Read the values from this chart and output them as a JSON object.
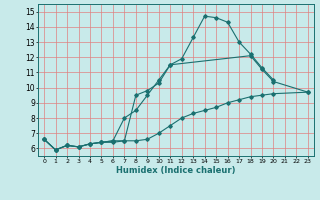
{
  "title": "",
  "xlabel": "Humidex (Indice chaleur)",
  "ylabel": "",
  "background_color": "#c8eaea",
  "grid_color": "#e08080",
  "line_color": "#1a7070",
  "xlim": [
    -0.5,
    23.5
  ],
  "ylim": [
    5.5,
    15.5
  ],
  "xticks": [
    0,
    1,
    2,
    3,
    4,
    5,
    6,
    7,
    8,
    9,
    10,
    11,
    12,
    13,
    14,
    15,
    16,
    17,
    18,
    19,
    20,
    21,
    22,
    23
  ],
  "yticks": [
    6,
    7,
    8,
    9,
    10,
    11,
    12,
    13,
    14,
    15
  ],
  "series": [
    {
      "x": [
        0,
        1,
        2,
        3,
        4,
        5,
        6,
        7,
        8,
        9,
        10,
        11,
        12,
        13,
        14,
        15,
        16,
        17,
        18,
        19,
        20
      ],
      "y": [
        6.6,
        5.9,
        6.2,
        6.1,
        6.3,
        6.4,
        6.5,
        6.5,
        9.5,
        9.8,
        10.3,
        11.5,
        11.9,
        13.3,
        14.7,
        14.6,
        14.3,
        13.0,
        12.2,
        11.3,
        10.5
      ]
    },
    {
      "x": [
        0,
        1,
        2,
        3,
        4,
        5,
        6,
        7,
        8,
        9,
        10,
        11,
        18,
        19,
        20,
        23
      ],
      "y": [
        6.6,
        5.9,
        6.2,
        6.1,
        6.3,
        6.4,
        6.5,
        8.0,
        8.5,
        9.5,
        10.5,
        11.5,
        12.1,
        11.2,
        10.4,
        9.7
      ]
    },
    {
      "x": [
        0,
        1,
        2,
        3,
        4,
        5,
        6,
        7,
        8,
        9,
        10,
        11,
        12,
        13,
        14,
        15,
        16,
        17,
        18,
        19,
        20,
        23
      ],
      "y": [
        6.6,
        5.9,
        6.2,
        6.1,
        6.3,
        6.4,
        6.4,
        6.5,
        6.5,
        6.6,
        7.0,
        7.5,
        8.0,
        8.3,
        8.5,
        8.7,
        9.0,
        9.2,
        9.4,
        9.5,
        9.6,
        9.7
      ]
    }
  ]
}
